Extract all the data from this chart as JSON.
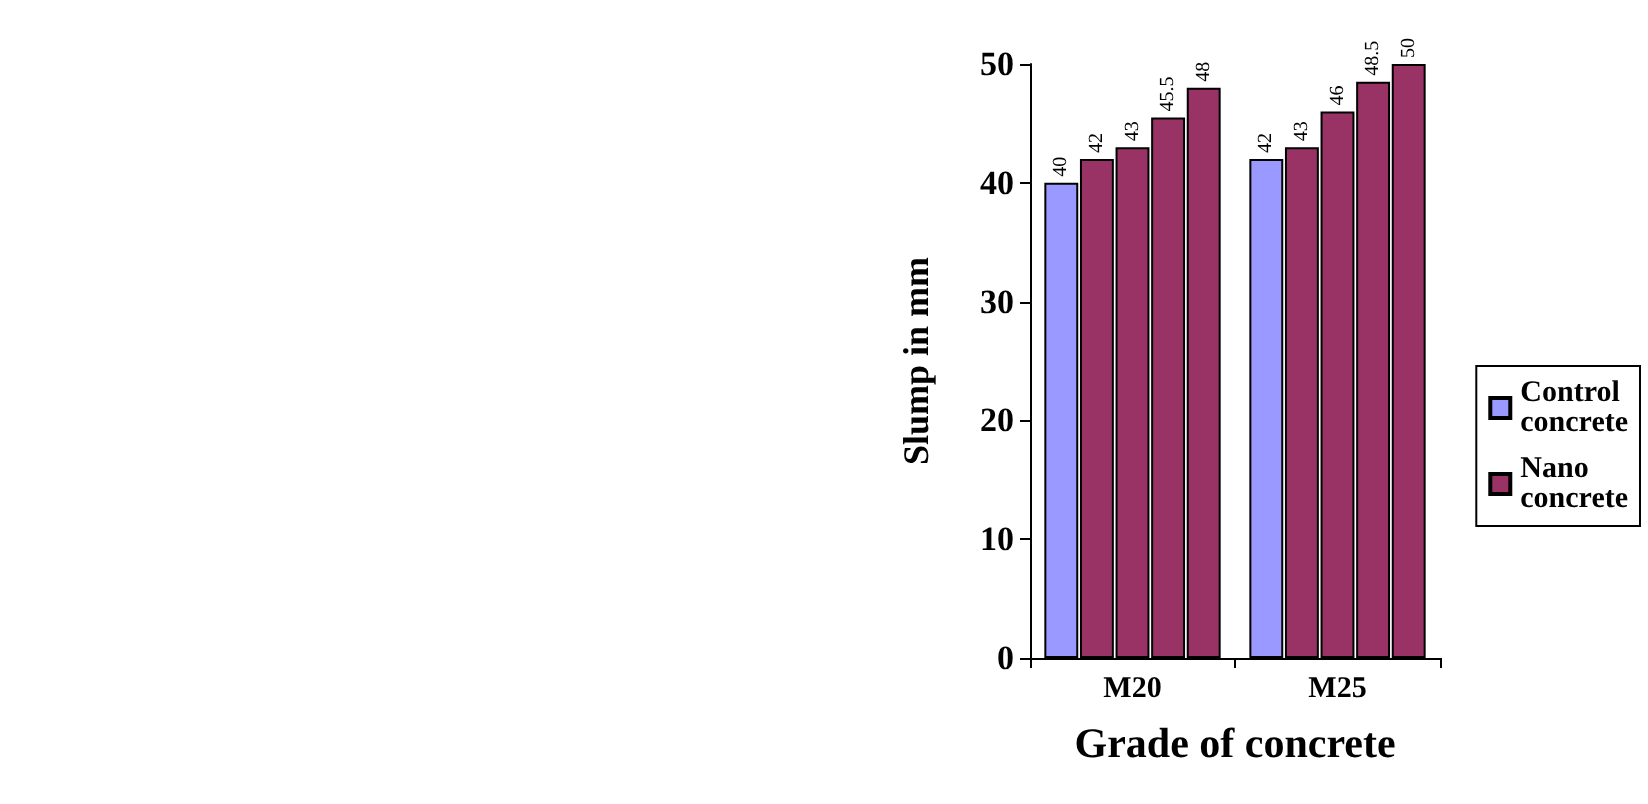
{
  "chart_data": {
    "type": "bar",
    "xlabel": "Grade of concrete",
    "ylabel": "Slump in mm",
    "categories": [
      "M20",
      "M25"
    ],
    "series": [
      {
        "name": "Control concrete",
        "color": "#9999ff",
        "values": [
          40,
          42
        ]
      },
      {
        "name": "Nano concrete",
        "color": "#993366",
        "values": [
          42,
          43
        ]
      },
      {
        "color": "#993366",
        "values": [
          43,
          46
        ]
      },
      {
        "color": "#993366",
        "values": [
          45.5,
          48.5
        ]
      },
      {
        "color": "#993366",
        "values": [
          48,
          50
        ]
      }
    ],
    "ylim": [
      0,
      50
    ],
    "yticks": [
      0,
      10,
      20,
      30,
      40,
      50
    ],
    "grid": false,
    "legend": "right",
    "data_labels": true
  }
}
